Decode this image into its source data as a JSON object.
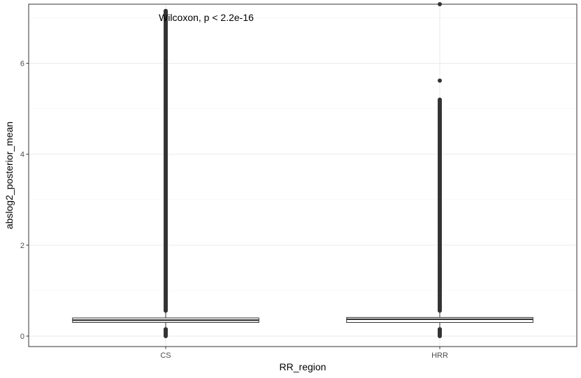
{
  "chart_data": {
    "type": "boxplot",
    "annotation": "Wilcoxon, p < 2.2e-16",
    "xlabel": "RR_region",
    "ylabel": "abslog2_posterior_mean",
    "categories": [
      "CS",
      "HRR"
    ],
    "ylim": [
      -0.23,
      7.3
    ],
    "y_ticks": [
      0,
      2,
      4,
      6
    ],
    "y_tick_labels": [
      "0",
      "2",
      "4",
      "6"
    ],
    "grid": true,
    "colors": {
      "box": "#333333",
      "points": "#333333",
      "grid_major": "#ebebeb",
      "grid_minor": "#f5f5f5",
      "panel_border": "#333333"
    },
    "boxes": [
      {
        "category": "CS",
        "q1": 0.3,
        "median": 0.35,
        "q3": 0.4,
        "whisker_low": 0.15,
        "whisker_high": 0.55,
        "outlier_high_min": 0.56,
        "outlier_high_max": 7.15,
        "outlier_low_min": 0.0,
        "outlier_low_max": 0.15,
        "isolated_outliers": []
      },
      {
        "category": "HRR",
        "q1": 0.3,
        "median": 0.37,
        "q3": 0.41,
        "whisker_low": 0.15,
        "whisker_high": 0.55,
        "outlier_high_min": 0.56,
        "outlier_high_max": 5.2,
        "outlier_low_min": 0.0,
        "outlier_low_max": 0.15,
        "isolated_outliers": [
          5.62,
          7.3
        ]
      }
    ]
  }
}
